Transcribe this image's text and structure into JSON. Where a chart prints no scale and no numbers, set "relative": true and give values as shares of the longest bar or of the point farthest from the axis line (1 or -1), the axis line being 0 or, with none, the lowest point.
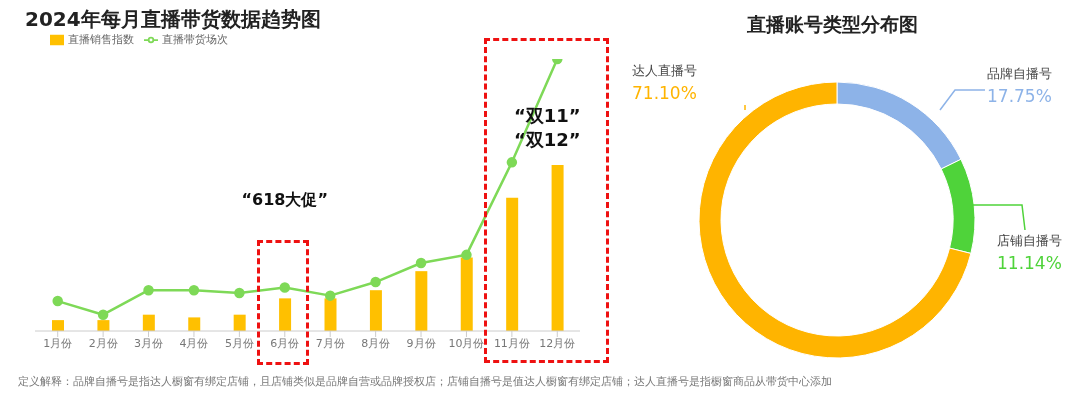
{
  "chart_data": [
    {
      "type": "bar",
      "title": "2024年每月直播带货数据趋势图",
      "relative": true,
      "legend": "top left",
      "marker": "circle",
      "categories": [
        "1月份",
        "2月份",
        "3月份",
        "4月份",
        "5月份",
        "6月份",
        "7月份",
        "8月份",
        "9月份",
        "10月份",
        "11月份",
        "12月份"
      ],
      "series": [
        {
          "name": "直播销售指数",
          "type": "bar",
          "color": "#ffc000",
          "values": [
            0.04,
            0.04,
            0.06,
            0.05,
            0.06,
            0.12,
            0.12,
            0.15,
            0.22,
            0.27,
            0.49,
            0.61
          ]
        },
        {
          "name": "直播带货场次",
          "type": "line",
          "color": "#7ed957",
          "values": [
            0.11,
            0.06,
            0.15,
            0.15,
            0.14,
            0.16,
            0.13,
            0.18,
            0.25,
            0.28,
            0.62,
            1
          ]
        }
      ],
      "annotations": [
        "“618大促”",
        "“双11”",
        "“双12”"
      ]
    },
    {
      "type": "donut",
      "title": "直播账号类型分布图",
      "categories": [
        "品牌自播号",
        "店铺自播号",
        "达人直播号"
      ],
      "values": [
        17.75,
        11.14,
        71.1
      ],
      "colors": [
        "#8db3e8",
        "#4fd33a",
        "#ffb400"
      ],
      "value_labels": [
        "17.75%",
        "11.14%",
        "71.10%"
      ],
      "annotations": [
        "定义解释：品牌自播号是指达人橱窗有绑定店铺，且店铺类似是品牌自营或品牌授权店；店铺自播号是值达人橱窗有绑定店铺；达人直播号是指橱窗商品从带货中心添加"
      ]
    }
  ]
}
